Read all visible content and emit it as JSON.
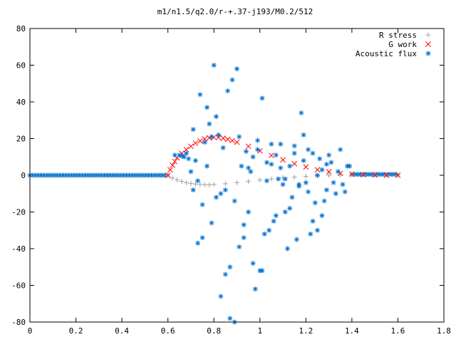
{
  "chart_data": {
    "type": "scatter",
    "title": "m1/n1.5/q2.0/r-+.37-j193/M0.2/512",
    "xlabel": "",
    "ylabel": "",
    "xlim": [
      0,
      1.8
    ],
    "ylim": [
      -80,
      80
    ],
    "xticks": [
      "0",
      "0.2",
      "0.4",
      "0.6",
      "0.8",
      "1",
      "1.2",
      "1.4",
      "1.6",
      "1.8"
    ],
    "yticks": [
      "80",
      "60",
      "40",
      "20",
      "0",
      "-20",
      "-40",
      "-60",
      "-80"
    ],
    "legend_position": "top-right",
    "series": [
      {
        "name": "R stress",
        "marker": "plus",
        "color": "#a0a0a0",
        "x": [
          0.6,
          0.62,
          0.64,
          0.66,
          0.68,
          0.7,
          0.72,
          0.74,
          0.76,
          0.78,
          0.8,
          0.85,
          0.9,
          0.95,
          1.0,
          1.05,
          1.1,
          1.15,
          1.2,
          1.25,
          1.3,
          1.35,
          1.4,
          1.45,
          1.5,
          1.55,
          1.6
        ],
        "y": [
          0,
          -1.5,
          -2.5,
          -3.3,
          -4.0,
          -4.5,
          -4.8,
          -5.0,
          -5.1,
          -5.2,
          -5.0,
          -4.6,
          -4.0,
          -3.3,
          -2.6,
          -2.0,
          -1.4,
          -1.0,
          -0.6,
          -0.3,
          -0.1,
          0.1,
          0.3,
          0.4,
          0.3,
          0.2,
          0.1
        ]
      },
      {
        "name": "G work",
        "marker": "cross",
        "color": "#ff0000",
        "x": [
          0.6,
          0.61,
          0.62,
          0.63,
          0.64,
          0.66,
          0.68,
          0.7,
          0.72,
          0.74,
          0.76,
          0.78,
          0.8,
          0.82,
          0.84,
          0.86,
          0.88,
          0.9,
          0.95,
          1.0,
          1.05,
          1.1,
          1.15,
          1.2,
          1.25,
          1.3,
          1.35,
          1.4,
          1.45,
          1.5,
          1.55,
          1.6
        ],
        "y": [
          0,
          3,
          5.5,
          7.5,
          9.5,
          12,
          14,
          15.8,
          17.5,
          18.7,
          19.8,
          20.4,
          20.7,
          20.6,
          20.2,
          19.6,
          18.9,
          18.0,
          15.8,
          13.3,
          10.8,
          8.4,
          6.3,
          4.5,
          3.0,
          1.9,
          1.1,
          0.6,
          0.3,
          0.1,
          0.0,
          0.0
        ]
      },
      {
        "name": "Acoustic flux",
        "marker": "asterisk",
        "color": "#0070d0",
        "x": [
          0.63,
          0.65,
          0.66,
          0.67,
          0.68,
          0.69,
          0.7,
          0.71,
          0.72,
          0.73,
          0.74,
          0.75,
          0.76,
          0.77,
          0.78,
          0.79,
          0.8,
          0.81,
          0.82,
          0.83,
          0.84,
          0.85,
          0.86,
          0.87,
          0.88,
          0.89,
          0.9,
          0.91,
          0.92,
          0.93,
          0.94,
          0.95,
          0.96,
          0.97,
          0.98,
          0.99,
          1.0,
          1.01,
          1.02,
          1.03,
          1.04,
          1.05,
          1.06,
          1.07,
          1.08,
          1.09,
          1.1,
          1.11,
          1.12,
          1.13,
          1.14,
          1.15,
          1.16,
          1.17,
          1.18,
          1.19,
          1.2,
          1.21,
          1.22,
          1.23,
          1.24,
          1.25,
          1.26,
          1.27,
          1.28,
          1.29,
          1.3,
          1.31,
          1.32,
          1.33,
          1.34,
          1.35,
          1.36,
          1.37,
          1.38,
          1.39,
          0.71,
          0.73,
          0.75,
          0.77,
          0.79,
          0.81,
          0.83,
          0.85,
          0.87,
          0.89,
          0.91,
          0.93,
          0.95,
          0.97,
          0.99,
          1.01,
          1.03,
          1.05,
          1.07,
          1.09,
          1.11,
          1.13,
          1.15,
          1.17,
          1.19,
          1.21,
          1.23,
          1.25,
          1.27,
          1.29
        ],
        "y": [
          11,
          11,
          10.5,
          10,
          12,
          9,
          2,
          -8,
          8,
          -3,
          44,
          -34,
          18,
          5,
          28,
          -26,
          60,
          -12,
          22,
          -66,
          15,
          -8,
          46,
          -78,
          52,
          -14,
          58,
          -39,
          5,
          -34,
          13,
          -20,
          2,
          10,
          -62,
          19,
          -52,
          42,
          -32,
          7,
          -30,
          6,
          -25,
          11,
          -2,
          17,
          -5,
          -20,
          -40,
          5,
          -12,
          16,
          -35,
          -6,
          34,
          8,
          -4,
          14,
          -32,
          -25,
          -15,
          0,
          9,
          -22,
          -14,
          -8,
          11,
          7,
          -4,
          -10,
          2,
          14,
          -5,
          -9,
          5,
          5,
          25,
          -37,
          -16,
          37,
          21,
          32,
          -10,
          -54,
          -50,
          -80,
          21,
          -27,
          4,
          -48,
          14,
          -52,
          -3,
          17,
          -22,
          4,
          -2,
          -18,
          12,
          -5,
          22,
          -9,
          12,
          -30,
          3,
          6
        ]
      }
    ]
  }
}
